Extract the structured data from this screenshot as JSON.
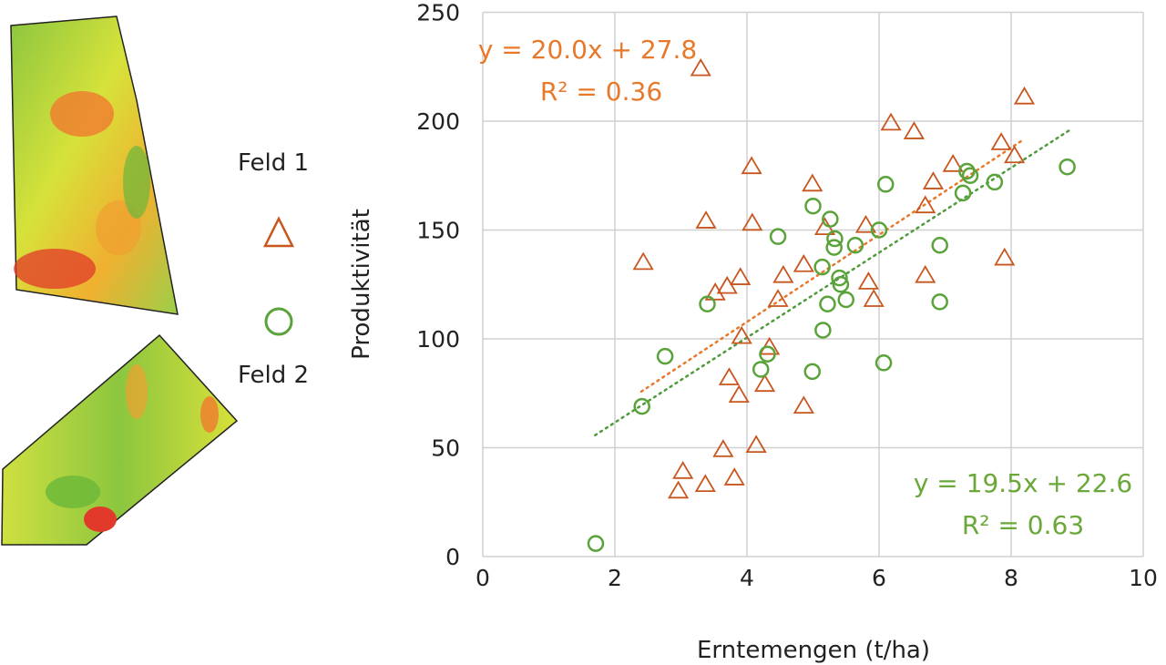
{
  "legend": {
    "items": [
      {
        "label": "Feld 1",
        "marker": "triangle",
        "color": "#c8561e"
      },
      {
        "label": "Feld 2",
        "marker": "circle",
        "color": "#5aa33a"
      }
    ]
  },
  "chart_data": {
    "type": "scatter",
    "xlabel": "Erntemengen (t/ha)",
    "ylabel": "Produktivität",
    "xlim": [
      0,
      10
    ],
    "ylim": [
      0,
      250
    ],
    "xticks": [
      "0",
      "2",
      "4",
      "6",
      "8",
      "10"
    ],
    "yticks": [
      "0",
      "50",
      "100",
      "150",
      "200",
      "250"
    ],
    "grid": true,
    "legend_position": "left",
    "series": [
      {
        "name": "Feld 1",
        "marker": "triangle",
        "color": "#c8561e",
        "trendline": {
          "equation": "y = 20.0x + 27.8",
          "r2": "R² = 0.36",
          "slope": 20.0,
          "intercept": 27.8,
          "x_range": [
            2.4,
            8.2
          ],
          "color": "#e8782a"
        },
        "points": [
          [
            3.3,
            224
          ],
          [
            8.2,
            211
          ],
          [
            6.18,
            199
          ],
          [
            6.53,
            195
          ],
          [
            4.07,
            179
          ],
          [
            7.85,
            190
          ],
          [
            8.05,
            184
          ],
          [
            7.12,
            180
          ],
          [
            4.99,
            171
          ],
          [
            6.82,
            172
          ],
          [
            3.38,
            154
          ],
          [
            4.08,
            153
          ],
          [
            5.18,
            151
          ],
          [
            5.8,
            152
          ],
          [
            6.7,
            161
          ],
          [
            2.43,
            135
          ],
          [
            4.86,
            134
          ],
          [
            4.55,
            129
          ],
          [
            3.9,
            128
          ],
          [
            7.9,
            137
          ],
          [
            6.7,
            129
          ],
          [
            5.84,
            126
          ],
          [
            3.7,
            124
          ],
          [
            3.52,
            121
          ],
          [
            4.47,
            118
          ],
          [
            5.92,
            118
          ],
          [
            3.92,
            101
          ],
          [
            4.34,
            96
          ],
          [
            3.73,
            82
          ],
          [
            4.27,
            79
          ],
          [
            3.88,
            74
          ],
          [
            4.86,
            69
          ],
          [
            3.64,
            49
          ],
          [
            4.14,
            51
          ],
          [
            3.03,
            39
          ],
          [
            3.37,
            33
          ],
          [
            2.96,
            30
          ],
          [
            3.81,
            36
          ]
        ]
      },
      {
        "name": "Feld 2",
        "marker": "circle",
        "color": "#5aa33a",
        "trendline": {
          "equation": "y = 19.5x + 22.6",
          "r2": "R² = 0.63",
          "slope": 19.5,
          "intercept": 22.6,
          "x_range": [
            1.7,
            8.9
          ],
          "color": "#4f9a3a"
        },
        "points": [
          [
            8.85,
            179
          ],
          [
            7.33,
            177
          ],
          [
            7.38,
            175
          ],
          [
            7.75,
            172
          ],
          [
            6.1,
            171
          ],
          [
            7.27,
            167
          ],
          [
            5.0,
            161
          ],
          [
            5.26,
            155
          ],
          [
            4.47,
            147
          ],
          [
            5.33,
            146
          ],
          [
            5.32,
            142
          ],
          [
            5.64,
            143
          ],
          [
            6.0,
            150
          ],
          [
            6.92,
            143
          ],
          [
            5.14,
            133
          ],
          [
            5.4,
            128
          ],
          [
            5.42,
            125
          ],
          [
            5.5,
            118
          ],
          [
            5.22,
            116
          ],
          [
            6.92,
            117
          ],
          [
            3.4,
            116
          ],
          [
            5.15,
            104
          ],
          [
            2.76,
            92
          ],
          [
            4.31,
            93
          ],
          [
            4.21,
            86
          ],
          [
            4.99,
            85
          ],
          [
            6.07,
            89
          ],
          [
            2.41,
            69
          ],
          [
            1.71,
            6
          ]
        ]
      }
    ]
  }
}
